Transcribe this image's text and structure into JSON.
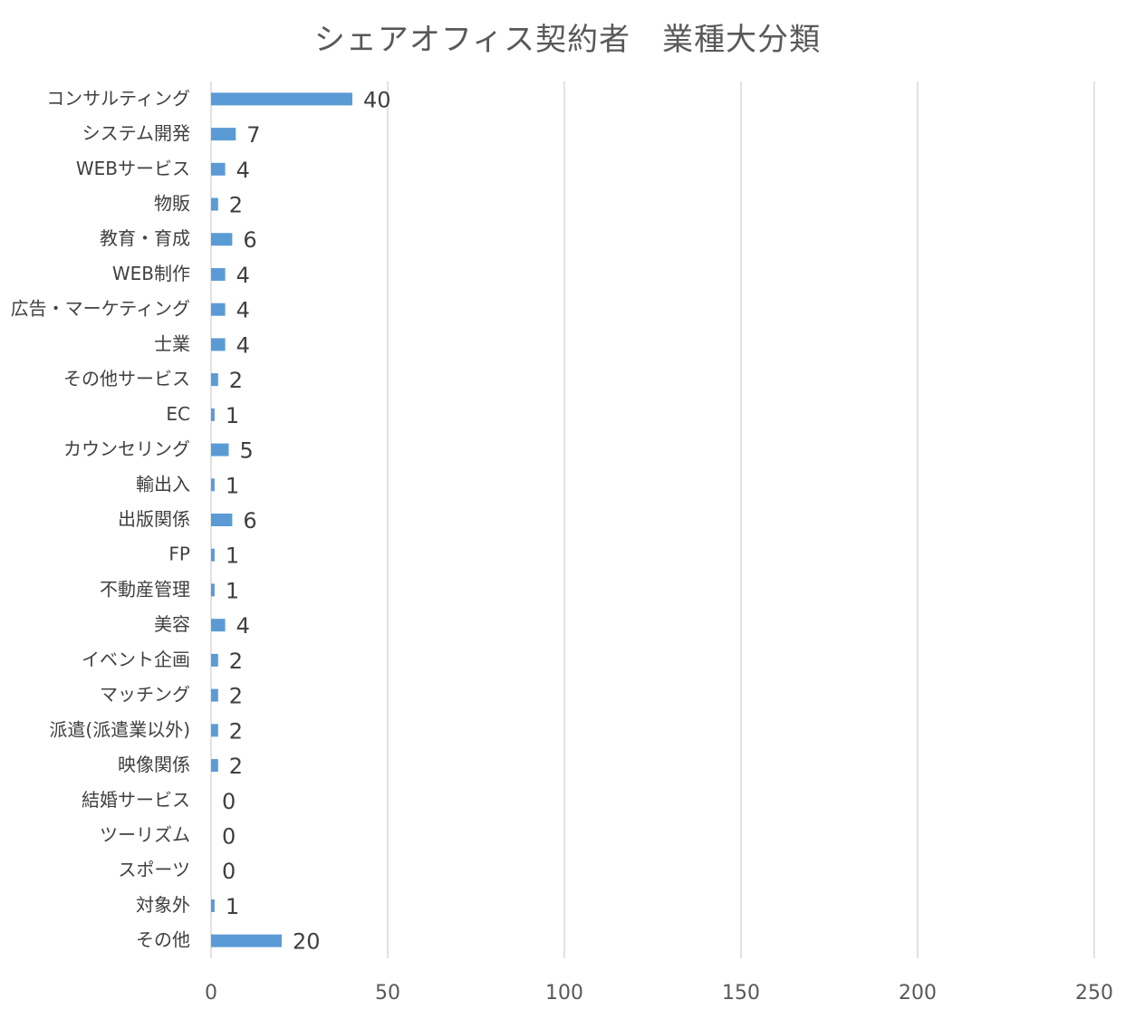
{
  "chart_data": {
    "type": "bar",
    "orientation": "horizontal",
    "title": "シェアオフィス契約者　業種大分類",
    "xlabel": "",
    "ylabel": "",
    "xlim": [
      0,
      250
    ],
    "x_ticks": [
      0,
      50,
      100,
      150,
      200,
      250
    ],
    "grid": "vertical",
    "legend": "none",
    "bar_color": "#5B9BD5",
    "grid_color": "#D9D9D9",
    "categories": [
      "コンサルティング",
      "システム開発",
      "WEBサービス",
      "物販",
      "教育・育成",
      "WEB制作",
      "広告・マーケティング",
      "士業",
      "その他サービス",
      "EC",
      "カウンセリング",
      "輸出入",
      "出版関係",
      "FP",
      "不動産管理",
      "美容",
      "イベント企画",
      "マッチング",
      "派遣(派遣業以外)",
      "映像関係",
      "結婚サービス",
      "ツーリズム",
      "スポーツ",
      "対象外",
      "その他"
    ],
    "values": [
      40,
      7,
      4,
      2,
      6,
      4,
      4,
      4,
      2,
      1,
      5,
      1,
      6,
      1,
      1,
      4,
      2,
      2,
      2,
      2,
      0,
      0,
      0,
      1,
      20
    ]
  }
}
